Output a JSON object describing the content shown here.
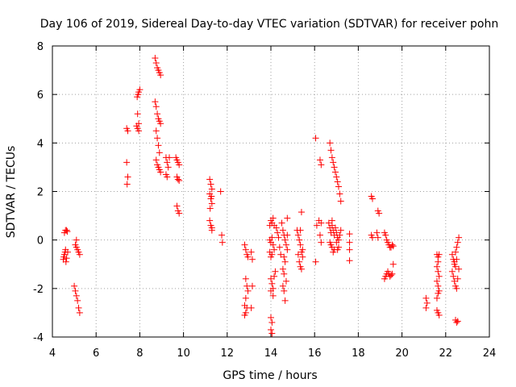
{
  "chart_data": {
    "type": "scatter",
    "title": "Day 106 of 2019, Sidereal Day-to-day VTEC variation (SDTVAR) for receiver pohn",
    "xlabel": "GPS time / hours",
    "ylabel": "SDTVAR / TECUs",
    "xlim": [
      4,
      24
    ],
    "ylim": [
      -4,
      8
    ],
    "xticks": [
      4,
      6,
      8,
      10,
      12,
      14,
      16,
      18,
      20,
      22,
      24
    ],
    "yticks": [
      -4,
      -2,
      0,
      2,
      4,
      6,
      8
    ],
    "grid": true,
    "marker": "plus",
    "color": "#ff0000",
    "series": [
      {
        "name": "SDTVAR",
        "points": [
          [
            4.5,
            -0.8
          ],
          [
            4.52,
            -0.7
          ],
          [
            4.55,
            -0.6
          ],
          [
            4.58,
            -0.5
          ],
          [
            4.6,
            -0.4
          ],
          [
            4.62,
            -0.9
          ],
          [
            4.65,
            -0.75
          ],
          [
            4.55,
            0.3
          ],
          [
            4.6,
            0.4
          ],
          [
            4.65,
            0.4
          ],
          [
            4.68,
            0.35
          ],
          [
            4.7,
            -0.5
          ],
          [
            5.05,
            -0.2
          ],
          [
            5.1,
            -0.3
          ],
          [
            5.15,
            -0.4
          ],
          [
            5.2,
            -0.5
          ],
          [
            5.25,
            -0.6
          ],
          [
            5.1,
            0.0
          ],
          [
            5.0,
            -1.9
          ],
          [
            5.05,
            -2.1
          ],
          [
            5.1,
            -2.3
          ],
          [
            5.15,
            -2.5
          ],
          [
            5.2,
            -2.8
          ],
          [
            5.25,
            -3.0
          ],
          [
            7.4,
            4.6
          ],
          [
            7.45,
            4.5
          ],
          [
            7.4,
            3.2
          ],
          [
            7.45,
            2.6
          ],
          [
            7.42,
            2.3
          ],
          [
            7.85,
            4.7
          ],
          [
            7.9,
            4.6
          ],
          [
            7.95,
            4.8
          ],
          [
            7.9,
            5.2
          ],
          [
            7.88,
            5.9
          ],
          [
            7.92,
            6.0
          ],
          [
            7.95,
            6.1
          ],
          [
            8.0,
            6.2
          ],
          [
            7.95,
            4.5
          ],
          [
            8.7,
            7.5
          ],
          [
            8.75,
            7.3
          ],
          [
            8.8,
            7.1
          ],
          [
            8.85,
            7.0
          ],
          [
            8.9,
            6.9
          ],
          [
            8.95,
            6.8
          ],
          [
            8.7,
            5.7
          ],
          [
            8.75,
            5.5
          ],
          [
            8.8,
            5.2
          ],
          [
            8.85,
            5.0
          ],
          [
            8.9,
            4.9
          ],
          [
            8.95,
            4.8
          ],
          [
            8.75,
            4.5
          ],
          [
            8.8,
            4.2
          ],
          [
            8.85,
            3.9
          ],
          [
            8.9,
            3.6
          ],
          [
            8.75,
            3.3
          ],
          [
            8.8,
            3.1
          ],
          [
            8.85,
            3.0
          ],
          [
            8.9,
            2.9
          ],
          [
            8.95,
            2.8
          ],
          [
            9.2,
            3.4
          ],
          [
            9.25,
            3.2
          ],
          [
            9.3,
            3.0
          ],
          [
            9.2,
            2.7
          ],
          [
            9.25,
            2.6
          ],
          [
            9.35,
            3.4
          ],
          [
            9.65,
            3.4
          ],
          [
            9.7,
            3.3
          ],
          [
            9.75,
            3.2
          ],
          [
            9.8,
            3.1
          ],
          [
            9.7,
            2.6
          ],
          [
            9.75,
            2.5
          ],
          [
            9.8,
            2.45
          ],
          [
            9.7,
            1.4
          ],
          [
            9.75,
            1.2
          ],
          [
            9.8,
            1.1
          ],
          [
            11.2,
            2.5
          ],
          [
            11.25,
            2.3
          ],
          [
            11.3,
            2.1
          ],
          [
            11.2,
            1.9
          ],
          [
            11.25,
            1.7
          ],
          [
            11.3,
            1.5
          ],
          [
            11.22,
            1.3
          ],
          [
            11.28,
            1.8
          ],
          [
            11.2,
            0.8
          ],
          [
            11.25,
            0.6
          ],
          [
            11.3,
            0.5
          ],
          [
            11.3,
            0.4
          ],
          [
            11.7,
            2.0
          ],
          [
            11.75,
            0.2
          ],
          [
            11.78,
            -0.1
          ],
          [
            12.8,
            -0.2
          ],
          [
            12.85,
            -0.4
          ],
          [
            12.9,
            -0.6
          ],
          [
            12.95,
            -0.7
          ],
          [
            12.85,
            -1.6
          ],
          [
            12.9,
            -1.9
          ],
          [
            12.95,
            -2.1
          ],
          [
            12.85,
            -2.4
          ],
          [
            12.8,
            -2.7
          ],
          [
            12.9,
            -2.8
          ],
          [
            12.85,
            -3.0
          ],
          [
            12.8,
            -3.1
          ],
          [
            13.1,
            -0.5
          ],
          [
            13.15,
            -0.8
          ],
          [
            13.15,
            -1.9
          ],
          [
            13.1,
            -2.8
          ],
          [
            13.95,
            0.6
          ],
          [
            14.0,
            0.8
          ],
          [
            14.05,
            0.7
          ],
          [
            14.1,
            0.9
          ],
          [
            14.15,
            0.6
          ],
          [
            13.95,
            0.0
          ],
          [
            14.0,
            -0.1
          ],
          [
            14.05,
            0.1
          ],
          [
            14.1,
            -0.2
          ],
          [
            14.15,
            -0.4
          ],
          [
            13.95,
            -0.5
          ],
          [
            14.0,
            -0.7
          ],
          [
            14.05,
            -0.6
          ],
          [
            14.0,
            -1.6
          ],
          [
            14.05,
            -1.8
          ],
          [
            14.1,
            -2.0
          ],
          [
            14.15,
            -1.5
          ],
          [
            14.2,
            -1.3
          ],
          [
            14.0,
            -2.1
          ],
          [
            14.1,
            -2.3
          ],
          [
            14.0,
            -3.2
          ],
          [
            14.05,
            -3.4
          ],
          [
            14.0,
            -3.7
          ],
          [
            14.05,
            -3.85
          ],
          [
            14.25,
            0.5
          ],
          [
            14.3,
            0.3
          ],
          [
            14.35,
            0.1
          ],
          [
            14.4,
            -0.3
          ],
          [
            14.45,
            -0.6
          ],
          [
            14.5,
            0.7
          ],
          [
            14.55,
            0.4
          ],
          [
            14.6,
            0.2
          ],
          [
            14.65,
            0.0
          ],
          [
            14.7,
            -0.2
          ],
          [
            14.75,
            -0.4
          ],
          [
            14.6,
            -0.7
          ],
          [
            14.65,
            -0.9
          ],
          [
            14.55,
            -1.2
          ],
          [
            14.6,
            -1.4
          ],
          [
            14.55,
            -1.9
          ],
          [
            14.6,
            -2.1
          ],
          [
            14.65,
            -2.5
          ],
          [
            14.7,
            -1.7
          ],
          [
            14.75,
            0.9
          ],
          [
            14.75,
            0.2
          ],
          [
            15.2,
            0.4
          ],
          [
            15.25,
            0.2
          ],
          [
            15.3,
            0.0
          ],
          [
            15.35,
            -0.2
          ],
          [
            15.4,
            -0.5
          ],
          [
            15.45,
            -0.7
          ],
          [
            15.3,
            -0.9
          ],
          [
            15.35,
            -1.1
          ],
          [
            15.4,
            -1.2
          ],
          [
            15.35,
            0.4
          ],
          [
            15.4,
            1.15
          ],
          [
            15.25,
            -0.6
          ],
          [
            15.45,
            -0.4
          ],
          [
            16.05,
            4.2
          ],
          [
            16.05,
            -0.9
          ],
          [
            16.1,
            0.6
          ],
          [
            16.2,
            0.8
          ],
          [
            16.3,
            0.7
          ],
          [
            16.25,
            3.3
          ],
          [
            16.3,
            3.1
          ],
          [
            16.25,
            0.2
          ],
          [
            16.3,
            -0.1
          ],
          [
            16.65,
            0.7
          ],
          [
            16.7,
            0.5
          ],
          [
            16.75,
            0.3
          ],
          [
            16.8,
            0.6
          ],
          [
            16.85,
            0.4
          ],
          [
            16.9,
            0.2
          ],
          [
            16.95,
            0.5
          ],
          [
            17.0,
            0.3
          ],
          [
            17.05,
            0.1
          ],
          [
            16.7,
            -0.1
          ],
          [
            16.75,
            -0.2
          ],
          [
            16.8,
            -0.3
          ],
          [
            16.9,
            -0.4
          ],
          [
            17.0,
            -0.1
          ],
          [
            17.1,
            0.0
          ],
          [
            17.15,
            0.2
          ],
          [
            17.2,
            0.4
          ],
          [
            16.8,
            0.8
          ],
          [
            16.85,
            -0.5
          ],
          [
            17.05,
            -0.4
          ],
          [
            17.1,
            -0.3
          ],
          [
            16.7,
            4.0
          ],
          [
            16.75,
            3.7
          ],
          [
            16.8,
            3.4
          ],
          [
            16.85,
            3.2
          ],
          [
            16.9,
            3.0
          ],
          [
            16.95,
            2.8
          ],
          [
            17.0,
            2.6
          ],
          [
            17.05,
            2.4
          ],
          [
            17.1,
            2.2
          ],
          [
            17.15,
            1.9
          ],
          [
            17.2,
            1.6
          ],
          [
            17.6,
            0.25
          ],
          [
            17.6,
            -0.1
          ],
          [
            17.6,
            -0.4
          ],
          [
            17.6,
            -0.85
          ],
          [
            18.6,
            1.8
          ],
          [
            18.65,
            1.7
          ],
          [
            18.6,
            0.2
          ],
          [
            18.65,
            0.1
          ],
          [
            18.9,
            1.2
          ],
          [
            18.95,
            1.1
          ],
          [
            18.85,
            0.3
          ],
          [
            18.9,
            0.1
          ],
          [
            19.2,
            0.3
          ],
          [
            19.25,
            0.2
          ],
          [
            19.3,
            0.0
          ],
          [
            19.35,
            -0.1
          ],
          [
            19.4,
            -0.2
          ],
          [
            19.45,
            -0.3
          ],
          [
            19.5,
            -0.3
          ],
          [
            19.55,
            -0.2
          ],
          [
            19.6,
            -0.25
          ],
          [
            19.25,
            -1.5
          ],
          [
            19.3,
            -1.4
          ],
          [
            19.35,
            -1.3
          ],
          [
            19.4,
            -1.4
          ],
          [
            19.45,
            -1.5
          ],
          [
            19.5,
            -1.45
          ],
          [
            19.55,
            -1.4
          ],
          [
            19.6,
            -1.0
          ],
          [
            19.2,
            -1.6
          ],
          [
            21.1,
            -2.4
          ],
          [
            21.15,
            -2.6
          ],
          [
            21.1,
            -2.8
          ],
          [
            21.6,
            -0.6
          ],
          [
            21.65,
            -0.7
          ],
          [
            21.7,
            -0.6
          ],
          [
            21.6,
            -1.1
          ],
          [
            21.65,
            -1.3
          ],
          [
            21.7,
            -1.5
          ],
          [
            21.6,
            -1.7
          ],
          [
            21.65,
            -1.9
          ],
          [
            21.7,
            -2.1
          ],
          [
            21.6,
            -2.4
          ],
          [
            21.65,
            -2.2
          ],
          [
            21.6,
            -2.9
          ],
          [
            21.65,
            -3.0
          ],
          [
            21.7,
            -3.1
          ],
          [
            21.65,
            -0.9
          ],
          [
            22.3,
            -0.6
          ],
          [
            22.35,
            -0.8
          ],
          [
            22.4,
            -1.0
          ],
          [
            22.45,
            -0.5
          ],
          [
            22.5,
            -0.3
          ],
          [
            22.55,
            -0.1
          ],
          [
            22.6,
            0.1
          ],
          [
            22.3,
            -1.3
          ],
          [
            22.35,
            -1.5
          ],
          [
            22.4,
            -1.7
          ],
          [
            22.45,
            -1.9
          ],
          [
            22.5,
            -2.0
          ],
          [
            22.55,
            -1.6
          ],
          [
            22.6,
            -1.2
          ],
          [
            22.4,
            -0.9
          ],
          [
            22.45,
            -1.1
          ],
          [
            22.5,
            -0.8
          ],
          [
            22.45,
            -3.3
          ],
          [
            22.5,
            -3.4
          ],
          [
            22.55,
            -3.35
          ]
        ]
      }
    ]
  }
}
